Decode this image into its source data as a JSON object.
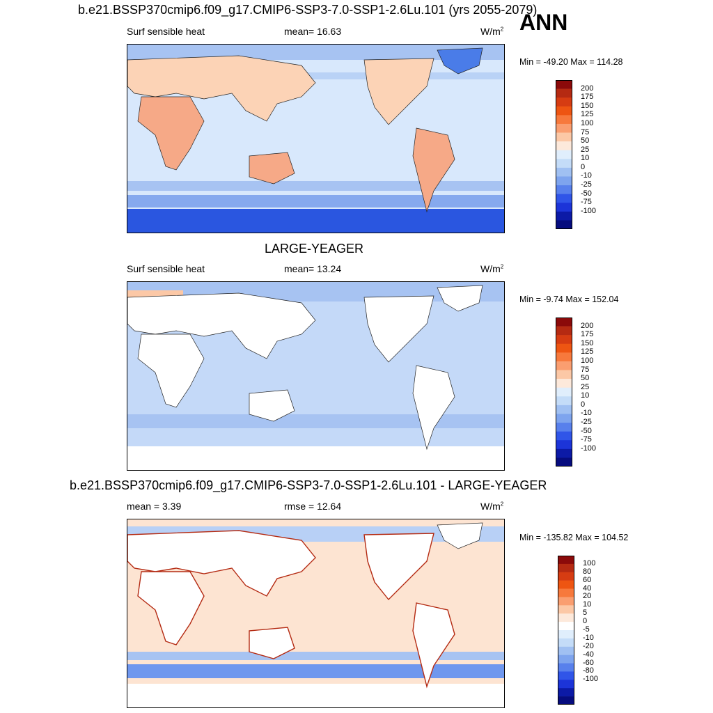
{
  "ann_label": "ANN",
  "units_base": "W/m",
  "units_exp": "2",
  "panels": [
    {
      "title": "b.e21.BSSP370cmip6.f09_g17.CMIP6-SSP3-7.0-SSP1-2.6Lu.101 (yrs 2055-2079)",
      "left_label": "Surf sensible heat",
      "center_label": "mean=  16.63",
      "minmax": "Min = -49.20 Max = 114.28"
    },
    {
      "title": "LARGE-YEAGER",
      "left_label": "Surf sensible heat",
      "center_label": "mean=  13.24",
      "minmax": "Min =  -9.74 Max = 152.04"
    },
    {
      "title": "b.e21.BSSP370cmip6.f09_g17.CMIP6-SSP3-7.0-SSP1-2.6Lu.101 - LARGE-YEAGER",
      "left_label": "mean =   3.39",
      "center_label": "rmse =  12.64",
      "minmax": "Min = -135.82 Max = 104.52"
    }
  ],
  "colorbars": {
    "abs": {
      "colors": [
        "#8b0a0a",
        "#b52a12",
        "#d63c12",
        "#ee5512",
        "#f7793c",
        "#fa9e70",
        "#fcc8a6",
        "#fde9db",
        "#e0eefc",
        "#c4dcf8",
        "#a0c0f2",
        "#7ea4ee",
        "#5880ec",
        "#3055e8",
        "#1c34d8",
        "#0c1aa6",
        "#060c7e"
      ],
      "labels": [
        "200",
        "175",
        "150",
        "125",
        "100",
        "75",
        "50",
        "25",
        "10",
        "0",
        "-10",
        "-25",
        "-50",
        "-75",
        "-100"
      ]
    },
    "diff": {
      "colors": [
        "#8b0a0a",
        "#b52a12",
        "#d63c12",
        "#ee5512",
        "#f7793c",
        "#fa9e70",
        "#fcc8a6",
        "#fde9db",
        "#ffffff",
        "#e0eefc",
        "#c4dcf8",
        "#a0c0f2",
        "#7ea4ee",
        "#5880ec",
        "#3055e8",
        "#1c34d8",
        "#0c1aa6",
        "#060c7e"
      ],
      "labels": [
        "100",
        "80",
        "60",
        "40",
        "20",
        "10",
        "5",
        "0",
        "-5",
        "-10",
        "-20",
        "-40",
        "-60",
        "-80",
        "-100"
      ]
    }
  },
  "chart_data": [
    {
      "type": "heatmap",
      "title": "b.e21.BSSP370cmip6.f09_g17.CMIP6-SSP3-7.0-SSP1-2.6Lu.101 (yrs 2055-2079)",
      "variable": "Surf sensible heat",
      "units": "W/m2",
      "season": "ANN",
      "mean": 16.63,
      "min": -49.2,
      "max": 114.28,
      "contour_levels": [
        -100,
        -75,
        -50,
        -25,
        -10,
        0,
        10,
        25,
        50,
        75,
        100,
        125,
        150,
        175,
        200
      ]
    },
    {
      "type": "heatmap",
      "title": "LARGE-YEAGER",
      "variable": "Surf sensible heat",
      "units": "W/m2",
      "mean": 13.24,
      "min": -9.74,
      "max": 152.04,
      "contour_levels": [
        -100,
        -75,
        -50,
        -25,
        -10,
        0,
        10,
        25,
        50,
        75,
        100,
        125,
        150,
        175,
        200
      ]
    },
    {
      "type": "heatmap",
      "title": "b.e21.BSSP370cmip6.f09_g17.CMIP6-SSP3-7.0-SSP1-2.6Lu.101 - LARGE-YEAGER",
      "units": "W/m2",
      "mean": 3.39,
      "rmse": 12.64,
      "min": -135.82,
      "max": 104.52,
      "contour_levels": [
        -100,
        -80,
        -60,
        -40,
        -20,
        -10,
        -5,
        0,
        5,
        10,
        20,
        40,
        60,
        80,
        100
      ]
    }
  ]
}
